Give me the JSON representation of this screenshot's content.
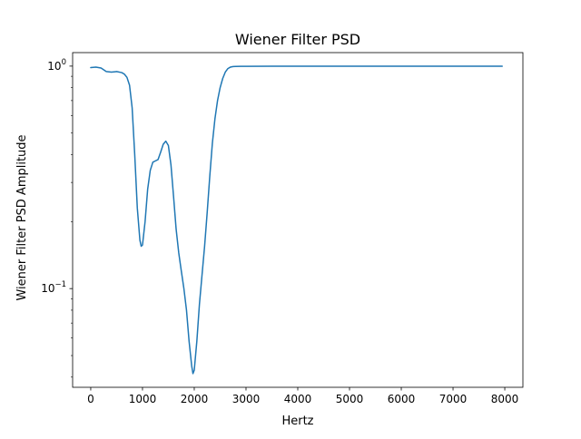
{
  "chart_data": {
    "type": "line",
    "title": "Wiener Filter PSD",
    "xlabel": "Hertz",
    "ylabel": "Wiener Filter PSD Amplitude",
    "yscale": "log",
    "xlim": [
      -350,
      8350
    ],
    "ylim": [
      0.036,
      1.15
    ],
    "grid": false,
    "x_ticks": [
      0,
      1000,
      2000,
      3000,
      4000,
      5000,
      6000,
      7000,
      8000
    ],
    "x_tick_labels": [
      "0",
      "1000",
      "2000",
      "3000",
      "4000",
      "5000",
      "6000",
      "7000",
      "8000"
    ],
    "y_major_ticks": [
      0.1,
      1
    ],
    "y_tick_labels": [
      {
        "base": "10",
        "exp": "−1"
      },
      {
        "base": "10",
        "exp": "0"
      }
    ],
    "y_minor_ticks": [
      0.04,
      0.05,
      0.06,
      0.07,
      0.08,
      0.09,
      0.2,
      0.3,
      0.4,
      0.5,
      0.6,
      0.7,
      0.8,
      0.9
    ],
    "series": [
      {
        "color": "#1f77b4",
        "x": [
          0,
          100,
          200,
          300,
          400,
          500,
          600,
          650,
          700,
          750,
          800,
          850,
          900,
          950,
          975,
          1000,
          1050,
          1100,
          1150,
          1200,
          1250,
          1300,
          1350,
          1400,
          1450,
          1500,
          1550,
          1600,
          1650,
          1700,
          1750,
          1800,
          1850,
          1900,
          1950,
          1975,
          2000,
          2050,
          2100,
          2150,
          2200,
          2250,
          2300,
          2350,
          2400,
          2450,
          2500,
          2550,
          2600,
          2650,
          2700,
          2750,
          2800,
          2900,
          3000,
          3500,
          4000,
          4500,
          5000,
          5500,
          6000,
          6500,
          7000,
          7500,
          7950
        ],
        "y": [
          0.985,
          0.99,
          0.98,
          0.945,
          0.94,
          0.945,
          0.935,
          0.92,
          0.89,
          0.82,
          0.65,
          0.4,
          0.23,
          0.165,
          0.155,
          0.157,
          0.2,
          0.28,
          0.34,
          0.37,
          0.375,
          0.38,
          0.41,
          0.445,
          0.46,
          0.44,
          0.36,
          0.26,
          0.185,
          0.145,
          0.12,
          0.1,
          0.08,
          0.058,
          0.045,
          0.0415,
          0.043,
          0.058,
          0.085,
          0.115,
          0.155,
          0.22,
          0.32,
          0.45,
          0.58,
          0.7,
          0.8,
          0.88,
          0.94,
          0.975,
          0.99,
          0.995,
          0.997,
          0.998,
          0.998,
          0.999,
          0.999,
          0.999,
          0.999,
          0.999,
          0.999,
          0.999,
          0.999,
          0.999,
          0.999
        ]
      }
    ]
  }
}
